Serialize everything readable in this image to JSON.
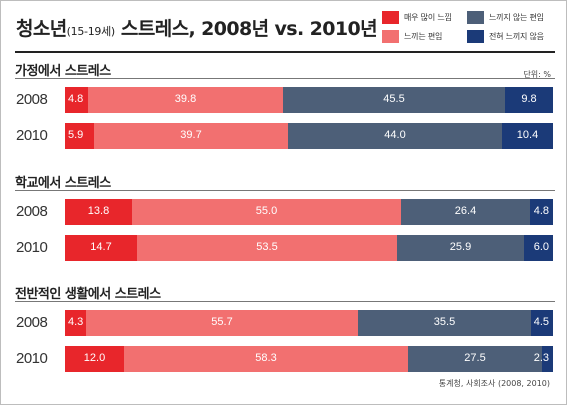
{
  "header": {
    "title_main": "청소년",
    "title_age": "(15-19세)",
    "title_rest": " 스트레스, 2008년 vs. 2010년"
  },
  "legend": [
    {
      "label": "매우 많이 느낌",
      "color": "#e8262b"
    },
    {
      "label": "느끼지 않는 편임",
      "color": "#4d5f78"
    },
    {
      "label": "느끼는 편임",
      "color": "#f27070"
    },
    {
      "label": "전혀 느끼지 않음",
      "color": "#1b3a78"
    }
  ],
  "unit_label": "단위: %",
  "source": "통계청, 사회조사 (2008, 2010)",
  "chart_data": {
    "type": "bar",
    "orientation": "horizontal-stacked-100",
    "series_names": [
      "매우 많이 느낌",
      "느끼는 편임",
      "느끼지 않는 편임",
      "전혀 느끼지 않음"
    ],
    "colors": [
      "#e8262b",
      "#f27070",
      "#4d5f78",
      "#1b3a78"
    ],
    "groups": [
      {
        "title": "가정에서 스트레스",
        "rows": [
          {
            "year": "2008",
            "values": [
              4.8,
              39.8,
              45.5,
              9.8
            ]
          },
          {
            "year": "2010",
            "values": [
              5.9,
              39.7,
              44.0,
              10.4
            ]
          }
        ]
      },
      {
        "title": "학교에서 스트레스",
        "rows": [
          {
            "year": "2008",
            "values": [
              13.8,
              55.0,
              26.4,
              4.8
            ]
          },
          {
            "year": "2010",
            "values": [
              14.7,
              53.5,
              25.9,
              6.0
            ]
          }
        ]
      },
      {
        "title": "전반적인 생활에서 스트레스",
        "rows": [
          {
            "year": "2008",
            "values": [
              4.3,
              55.7,
              35.5,
              4.5
            ]
          },
          {
            "year": "2010",
            "values": [
              12.0,
              58.3,
              27.5,
              2.3
            ]
          }
        ]
      }
    ]
  }
}
